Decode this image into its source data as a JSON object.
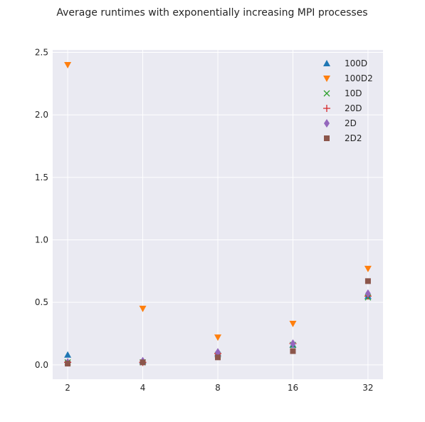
{
  "chart_data": {
    "type": "scatter",
    "title": "Average runtimes with exponentially increasing MPI processes",
    "xlabel": "",
    "ylabel": "",
    "x_scale": "log2",
    "x": [
      2,
      4,
      8,
      16,
      32
    ],
    "x_tick_labels": [
      "2",
      "4",
      "8",
      "16",
      "32"
    ],
    "y_ticks": [
      0.0,
      0.5,
      1.0,
      1.5,
      2.0,
      2.5
    ],
    "y_tick_labels": [
      "0.0",
      "0.5",
      "1.0",
      "1.5",
      "2.0",
      "2.5"
    ],
    "ylim": [
      -0.115,
      2.52
    ],
    "grid": true,
    "legend_position": "top-right",
    "series": [
      {
        "name": "100D",
        "marker": "triangle-up",
        "color": "#1f77b4",
        "values": [
          0.08,
          0.03,
          0.09,
          0.16,
          0.55
        ]
      },
      {
        "name": "100D2",
        "marker": "triangle-down",
        "color": "#ff7f0e",
        "values": [
          2.4,
          0.45,
          0.22,
          0.33,
          0.77
        ]
      },
      {
        "name": "10D",
        "marker": "x",
        "color": "#2ca02c",
        "values": [
          0.02,
          0.02,
          0.08,
          0.16,
          0.54
        ]
      },
      {
        "name": "20D",
        "marker": "plus",
        "color": "#d62728",
        "values": [
          0.02,
          0.02,
          0.09,
          0.17,
          0.55
        ]
      },
      {
        "name": "2D",
        "marker": "diamond",
        "color": "#9467bd",
        "values": [
          0.02,
          0.03,
          0.1,
          0.17,
          0.57
        ]
      },
      {
        "name": "2D2",
        "marker": "square",
        "color": "#8c564b",
        "values": [
          0.01,
          0.02,
          0.06,
          0.11,
          0.67
        ]
      }
    ]
  },
  "style": {
    "plot_background": "#eaeaf2",
    "grid_color": "#ffffff",
    "text_color": "#262626"
  }
}
